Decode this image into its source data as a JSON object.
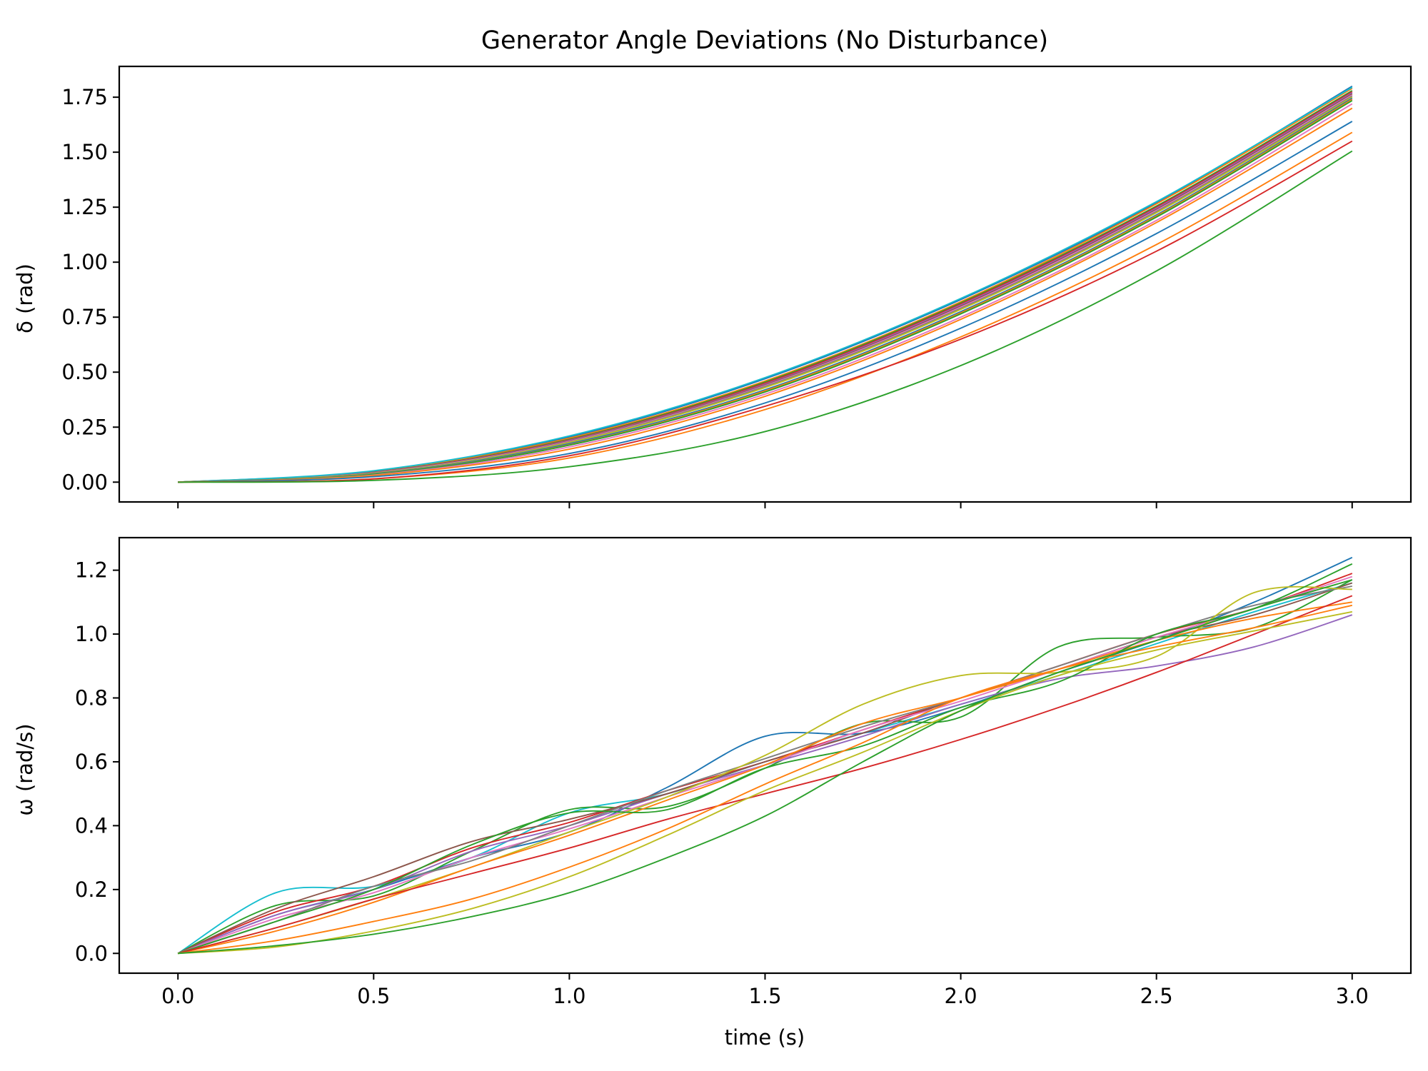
{
  "chart_data": {
    "title": "Generator Angle Deviations (No Disturbance)",
    "xlabel": "time (s)",
    "x_ticks": [
      "0.0",
      "0.5",
      "1.0",
      "1.5",
      "2.0",
      "2.5",
      "3.0"
    ],
    "xlim": [
      -0.15,
      3.15
    ],
    "panels": [
      {
        "type": "line",
        "ylabel": "δ (rad)",
        "ylim": [
          -0.09,
          1.89
        ],
        "y_ticks": [
          "0.00",
          "0.25",
          "0.50",
          "0.75",
          "1.00",
          "1.25",
          "1.50",
          "1.75"
        ],
        "x": [
          0.0,
          0.5,
          1.0,
          1.5,
          2.0,
          2.5,
          3.0
        ],
        "series": [
          {
            "color": "#1f77b4",
            "values": [
              0,
              0.05,
              0.205,
              0.47,
              0.83,
              1.27,
              1.8
            ]
          },
          {
            "color": "#ff7f0e",
            "values": [
              0,
              0.048,
              0.2,
              0.46,
              0.82,
              1.265,
              1.79
            ]
          },
          {
            "color": "#2ca02c",
            "values": [
              0,
              0.046,
              0.195,
              0.455,
              0.815,
              1.255,
              1.78
            ]
          },
          {
            "color": "#d62728",
            "values": [
              0,
              0.045,
              0.192,
              0.45,
              0.81,
              1.25,
              1.775
            ]
          },
          {
            "color": "#9467bd",
            "values": [
              0,
              0.044,
              0.19,
              0.445,
              0.805,
              1.245,
              1.77
            ]
          },
          {
            "color": "#8c564b",
            "values": [
              0,
              0.043,
              0.188,
              0.442,
              0.8,
              1.24,
              1.765
            ]
          },
          {
            "color": "#e377c2",
            "values": [
              0,
              0.042,
              0.185,
              0.438,
              0.795,
              1.235,
              1.76
            ]
          },
          {
            "color": "#7f7f7f",
            "values": [
              0,
              0.041,
              0.182,
              0.435,
              0.79,
              1.23,
              1.755
            ]
          },
          {
            "color": "#bcbd22",
            "values": [
              0,
              0.04,
              0.18,
              0.43,
              0.785,
              1.225,
              1.75
            ]
          },
          {
            "color": "#17becf",
            "values": [
              0,
              0.052,
              0.21,
              0.475,
              0.835,
              1.275,
              1.795
            ]
          },
          {
            "color": "#1f77b4",
            "values": [
              0,
              0.038,
              0.175,
              0.42,
              0.775,
              1.215,
              1.745
            ]
          },
          {
            "color": "#ff7f0e",
            "values": [
              0,
              0.036,
              0.17,
              0.415,
              0.77,
              1.21,
              1.74
            ]
          },
          {
            "color": "#2ca02c",
            "values": [
              0,
              0.035,
              0.168,
              0.41,
              0.765,
              1.205,
              1.735
            ]
          },
          {
            "color": "#e377c2",
            "values": [
              0,
              0.032,
              0.16,
              0.4,
              0.75,
              1.19,
              1.72
            ]
          },
          {
            "color": "#ff7f0e",
            "values": [
              0,
              0.03,
              0.15,
              0.39,
              0.74,
              1.18,
              1.7
            ]
          },
          {
            "color": "#1f77b4",
            "values": [
              0,
              0.025,
              0.13,
              0.36,
              0.7,
              1.13,
              1.64
            ]
          },
          {
            "color": "#ff7f0e",
            "values": [
              0,
              0.015,
              0.11,
              0.33,
              0.66,
              1.08,
              1.59
            ]
          },
          {
            "color": "#d62728",
            "values": [
              0,
              0.015,
              0.12,
              0.345,
              0.65,
              1.05,
              1.55
            ]
          },
          {
            "color": "#2ca02c",
            "values": [
              0,
              0.008,
              0.07,
              0.23,
              0.53,
              0.96,
              1.505
            ]
          }
        ]
      },
      {
        "type": "line",
        "ylabel": "ω (rad/s)",
        "ylim": [
          -0.062,
          1.302
        ],
        "y_ticks": [
          "0.0",
          "0.2",
          "0.4",
          "0.6",
          "0.8",
          "1.0",
          "1.2"
        ],
        "x": [
          0.0,
          0.25,
          0.5,
          0.75,
          1.0,
          1.25,
          1.5,
          1.75,
          2.0,
          2.25,
          2.5,
          2.75,
          3.0
        ],
        "series": [
          {
            "color": "#17becf",
            "values": [
              0,
              0.19,
              0.21,
              0.3,
              0.44,
              0.5,
              0.6,
              0.69,
              0.78,
              0.87,
              0.97,
              1.07,
              1.16
            ]
          },
          {
            "color": "#1f77b4",
            "values": [
              0,
              0.12,
              0.2,
              0.3,
              0.38,
              0.52,
              0.68,
              0.69,
              0.77,
              0.88,
              0.98,
              1.1,
              1.24
            ]
          },
          {
            "color": "#2ca02c",
            "values": [
              0,
              0.15,
              0.18,
              0.32,
              0.45,
              0.46,
              0.58,
              0.72,
              0.74,
              0.96,
              0.99,
              1.02,
              1.17
            ]
          },
          {
            "color": "#d62728",
            "values": [
              0,
              0.13,
              0.21,
              0.33,
              0.41,
              0.51,
              0.6,
              0.7,
              0.8,
              0.9,
              1.0,
              1.08,
              1.19
            ]
          },
          {
            "color": "#9467bd",
            "values": [
              0,
              0.12,
              0.2,
              0.32,
              0.4,
              0.5,
              0.59,
              0.68,
              0.78,
              0.86,
              0.9,
              0.96,
              1.06
            ]
          },
          {
            "color": "#8c564b",
            "values": [
              0,
              0.14,
              0.24,
              0.35,
              0.42,
              0.5,
              0.6,
              0.69,
              0.8,
              0.89,
              0.99,
              1.06,
              1.16
            ]
          },
          {
            "color": "#e377c2",
            "values": [
              0,
              0.11,
              0.19,
              0.3,
              0.39,
              0.49,
              0.59,
              0.7,
              0.79,
              0.89,
              0.99,
              1.08,
              1.18
            ]
          },
          {
            "color": "#7f7f7f",
            "values": [
              0,
              0.1,
              0.21,
              0.29,
              0.4,
              0.51,
              0.61,
              0.71,
              0.8,
              0.9,
              1.0,
              1.09,
              1.15
            ]
          },
          {
            "color": "#bcbd22",
            "values": [
              0,
              0.08,
              0.17,
              0.27,
              0.38,
              0.49,
              0.62,
              0.78,
              0.87,
              0.88,
              0.93,
              1.13,
              1.14
            ]
          },
          {
            "color": "#ff7f0e",
            "values": [
              0,
              0.07,
              0.16,
              0.27,
              0.37,
              0.48,
              0.59,
              0.72,
              0.8,
              0.89,
              0.98,
              1.05,
              1.1
            ]
          },
          {
            "color": "#2ca02c",
            "values": [
              0,
              0.1,
              0.2,
              0.34,
              0.44,
              0.45,
              0.58,
              0.65,
              0.77,
              0.85,
              1.0,
              1.08,
              1.22
            ]
          },
          {
            "color": "#d62728",
            "values": [
              0,
              0.08,
              0.17,
              0.25,
              0.33,
              0.42,
              0.5,
              0.58,
              0.67,
              0.77,
              0.88,
              1.0,
              1.12
            ]
          },
          {
            "color": "#ff7f0e",
            "values": [
              0,
              0.04,
              0.1,
              0.17,
              0.27,
              0.39,
              0.53,
              0.66,
              0.8,
              0.89,
              0.96,
              1.02,
              1.09
            ]
          },
          {
            "color": "#bcbd22",
            "values": [
              0,
              0.02,
              0.07,
              0.14,
              0.24,
              0.37,
              0.51,
              0.63,
              0.76,
              0.87,
              0.95,
              1.01,
              1.07
            ]
          },
          {
            "color": "#2ca02c",
            "values": [
              0,
              0.024,
              0.06,
              0.115,
              0.19,
              0.3,
              0.43,
              0.6,
              0.76,
              0.88,
              0.98,
              1.08,
              1.17
            ]
          }
        ]
      }
    ],
    "grid": false,
    "legend": false
  }
}
